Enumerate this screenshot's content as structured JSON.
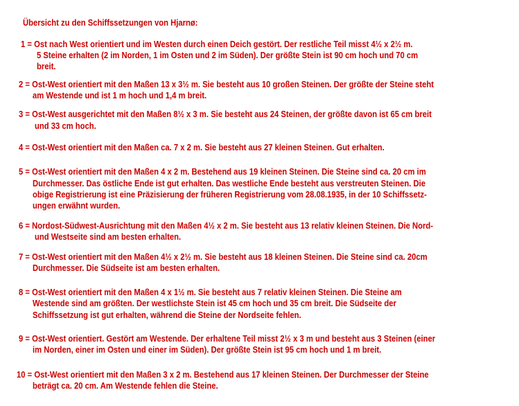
{
  "title": "Übersicht zu den Schiffssetzungen von Hjarnø:",
  "text_color": "#cc0000",
  "entries": [
    {
      "lines": [
        "1 = Ost nach West orientiert und im Westen durch einen Deich gestört. Der restliche Teil misst 4½  x 2½  m.",
        "5 Steine erhalten (2 im Norden, 1 im Osten und 2 im Süden). Der größte Stein ist 90 cm hoch und 70 cm",
        "breit."
      ]
    },
    {
      "lines": [
        "2 = Ost-West orientiert mit den Maßen 13 x 3½ m. Sie besteht aus 10 großen Steinen. Der größte der Steine steht",
        "am Westende und ist 1 m hoch und 1,4 m breit."
      ]
    },
    {
      "lines": [
        "3 = Ost-West ausgerichtet mit den Maßen 8½ x 3 m. Sie besteht aus 24 Steinen, der größte davon ist 65 cm breit",
        "und 33 cm hoch."
      ]
    },
    {
      "lines": [
        "4 = Ost-West orientiert mit den Maßen ca. 7 x 2 m. Sie besteht aus 27 kleinen Steinen. Gut erhalten."
      ]
    },
    {
      "lines": [
        "5 = Ost-West orientiert mit den Maßen 4 x 2 m. Bestehend aus 19 kleinen Steinen. Die Steine sind ca. 20 cm im",
        "Durchmesser. Das östliche Ende ist gut erhalten. Das westliche Ende besteht aus verstreuten Steinen. Die",
        "obige Registrierung ist eine Präzisierung der früheren Registrierung vom 28.08.1935, in der 10 Schiffssetz-",
        "ungen erwähnt wurden."
      ]
    },
    {
      "lines": [
        "6 = Nordost-Südwest-Ausrichtung mit den Maßen 4½ x 2 m. Sie besteht aus 13 relativ kleinen Steinen. Die Nord-",
        "und Westseite sind am besten erhalten."
      ]
    },
    {
      "lines": [
        "7 = Ost-West orientiert mit den Maßen 4½ x 2½ m. Sie besteht aus 18 kleinen Steinen. Die Steine sind ca. 20cm",
        "Durchmesser. Die Südseite ist am besten erhalten."
      ]
    },
    {
      "lines": [
        "8 = Ost-West orientiert mit den Maßen 4 x 1½ m. Sie besteht aus 7 relativ kleinen Steinen. Die Steine am",
        "Westende sind am größten. Der westlichste Stein ist 45 cm hoch und 35 cm breit. Die Südseite der",
        "Schiffssetzung ist gut erhalten, während die Steine der Nordseite fehlen."
      ]
    },
    {
      "lines": [
        "9 = Ost-West orientiert. Gestört am Westende. Der erhaltene Teil misst 2½ x 3 m und besteht aus 3 Steinen (einer",
        "im Norden, einer im Osten und einer im Süden). Der größte Stein ist 95 cm hoch und 1 m breit."
      ]
    },
    {
      "lines": [
        "10 = Ost-West orientiert mit den Maßen 3 x 2 m. Bestehend aus 17 kleinen Steinen. Der Durchmesser der Steine",
        "beträgt ca. 20 cm. Am Westende fehlen die Steine."
      ]
    }
  ]
}
